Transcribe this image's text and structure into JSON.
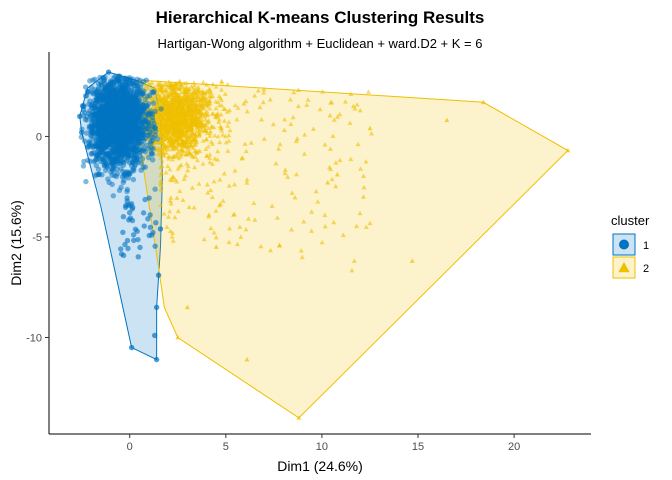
{
  "chart_data": {
    "type": "scatter",
    "title": "Hierarchical K-means Clustering Results",
    "subtitle": "Hartigan-Wong algorithm + Euclidean + ward.D2 + K = 6",
    "xlabel": "Dim1 (24.6%)",
    "ylabel": "Dim2 (15.6%)",
    "xlim": [
      -4.2,
      24.0
    ],
    "ylim": [
      -14.8,
      4.2
    ],
    "x_ticks": [
      0,
      5,
      10,
      15,
      20
    ],
    "y_ticks": [
      0,
      -5,
      -10
    ],
    "x_tick_labels": [
      "0",
      "5",
      "10",
      "15",
      "20"
    ],
    "y_tick_labels": [
      "0",
      "-5",
      "-10"
    ],
    "grid": false,
    "legend": {
      "title": "cluster",
      "position": "right"
    },
    "series": [
      {
        "name": "1",
        "marker": "circle",
        "color": "#0073C2",
        "hull": [
          [
            -1.1,
            3.2
          ],
          [
            0.3,
            2.8
          ],
          [
            1.3,
            2.4
          ],
          [
            1.6,
            1.0
          ],
          [
            1.7,
            -2.0
          ],
          [
            1.6,
            -5.5
          ],
          [
            1.4,
            -8.5
          ],
          [
            1.4,
            -11.1
          ],
          [
            0.1,
            -10.5
          ],
          [
            -1.5,
            -3.5
          ],
          [
            -2.5,
            0.2
          ],
          [
            -2.6,
            1.0
          ],
          [
            -2.2,
            2.4
          ]
        ],
        "extremes": [
          [
            -1.1,
            3.2
          ],
          [
            0.1,
            -10.5
          ],
          [
            1.4,
            -11.1
          ],
          [
            1.4,
            -8.5
          ],
          [
            1.3,
            -9.9
          ],
          [
            1.5,
            -6.9
          ],
          [
            -2.6,
            1.0
          ],
          [
            -2.5,
            0.2
          ],
          [
            1.6,
            -4.6
          ]
        ]
      },
      {
        "name": "2",
        "marker": "triangle",
        "color": "#EFC000",
        "hull": [
          [
            0.5,
            2.8
          ],
          [
            18.4,
            1.7
          ],
          [
            22.8,
            -0.7
          ],
          [
            8.8,
            -14.0
          ],
          [
            2.5,
            -10.0
          ],
          [
            1.8,
            -8.5
          ],
          [
            1.5,
            -6.5
          ],
          [
            0.3,
            1.0
          ]
        ],
        "extremes": [
          [
            18.4,
            1.7
          ],
          [
            22.8,
            -0.7
          ],
          [
            8.8,
            -14.0
          ],
          [
            2.5,
            -10.0
          ],
          [
            6.1,
            -11.1
          ],
          [
            14.7,
            -6.2
          ],
          [
            10.3,
            -2.3
          ],
          [
            16.5,
            0.8
          ],
          [
            12.5,
            0.4
          ],
          [
            4.5,
            -5.5
          ],
          [
            3.0,
            -8.5
          ],
          [
            10.8,
            -1.9
          ]
        ]
      }
    ]
  }
}
